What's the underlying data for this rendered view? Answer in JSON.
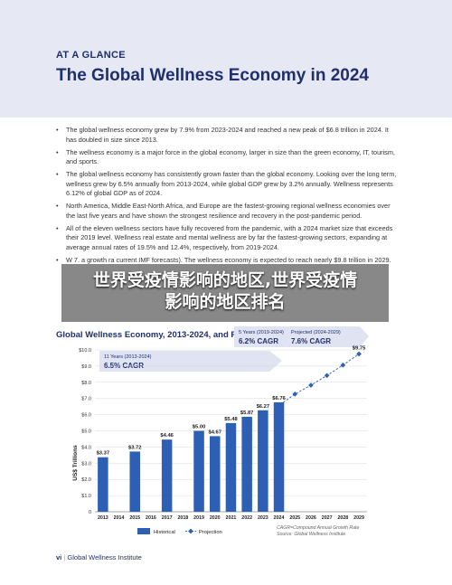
{
  "header": {
    "kicker": "AT A GLANCE",
    "title": "The Global Wellness Economy in 2024"
  },
  "bullets": [
    "The global wellness  economy grew by 7.9% from 2023-2024 and reached a new peak of $6.8 trillion in 2024. It has doubled in size since 2013.",
    "The wellness economy is a major force in the global economy, larger in size than the green economy, IT, tourism, and sports.",
    "The global wellness economy has consistently grown faster than the global economy. Looking over the long term, wellness grew by 6.5% annually from 2013-2024, while global GDP grew by 3.2% annually. Wellness represents 6.12% of global GDP as of 2024.",
    "North America, Middle East-North Africa, and Europe are the fastest-growing regional wellness economies over the last five years and have shown the strongest resilience and recovery in the post-pandemic period.",
    "All of the eleven wellness sectors have fully recovered from the pandemic, with a 2024 market size that exceeds their 2019 level. Wellness real estate and mental wellness are by far the fastest-growing sectors, expanding at average annual rates of 19.5% and 12.4%, respectively, from 2019-2024.",
    "W                                                                          7.                                            a growth ra                                                                                                 current IMF forecasts). The wellness economy is expected to reach nearly $9.8 trillion in 2029."
  ],
  "overlay": {
    "line1": "世界受疫情影响的地区,世界受疫情",
    "line2": "影响的地区排名"
  },
  "chart_title": "Global Wellness Economy, 2013-2024, and Projections, 2013-2029",
  "callouts": {
    "c11_period": "11 Years (2013-2024)",
    "c11_value": "6.5% CAGR",
    "c5_period": "5 Years (2019-2024)",
    "c5_value": "6.2% CAGR",
    "proj_period": "Projected (2024-2029)",
    "proj_value": "7.6% CAGR"
  },
  "legend": {
    "historical": "Historical",
    "projection": "Projection"
  },
  "footnote": {
    "line1": "CAGR=Compound Annual Growth Rate",
    "line2": "Source: Global Wellness Institute"
  },
  "footer": {
    "page": "vi",
    "separator": "|",
    "org": "Global Wellness Institute"
  },
  "colors": {
    "navy": "#1f2f6e",
    "bar": "#2d5fb4",
    "projection": "#2d5fb4",
    "callout": "#dfe3f2"
  },
  "chart_data": {
    "type": "bar",
    "ylabel": "US$ Trillions",
    "ylim": [
      0,
      10
    ],
    "yticks": [
      "0",
      "$1.0",
      "$2.0",
      "$3.0",
      "$4.0",
      "$5.0",
      "$6.0",
      "$7.0",
      "$8.0",
      "$9.0",
      "$10.0"
    ],
    "x": [
      "2013",
      "2014",
      "2015",
      "2016",
      "2017",
      "2018",
      "2019",
      "2020",
      "2021",
      "2022",
      "2023",
      "2024",
      "2025",
      "2026",
      "2027",
      "2028",
      "2029"
    ],
    "series": [
      {
        "name": "Historical",
        "kind": "bar",
        "points": [
          {
            "x": "2013",
            "y": 3.37,
            "label": "$3.37"
          },
          {
            "x": "2015",
            "y": 3.72,
            "label": "$3.72"
          },
          {
            "x": "2017",
            "y": 4.46,
            "label": "$4.46"
          },
          {
            "x": "2019",
            "y": 5.0,
            "label": "$5.00"
          },
          {
            "x": "2020",
            "y": 4.67,
            "label": "$4.67"
          },
          {
            "x": "2021",
            "y": 5.48,
            "label": "$5.48"
          },
          {
            "x": "2022",
            "y": 5.87,
            "label": "$5.87"
          },
          {
            "x": "2023",
            "y": 6.27,
            "label": "$6.27"
          },
          {
            "x": "2024",
            "y": 6.76,
            "label": "$6.76"
          }
        ]
      },
      {
        "name": "Projection",
        "kind": "line",
        "points": [
          {
            "x": "2024",
            "y": 6.76,
            "label": ""
          },
          {
            "x": "2025",
            "y": 7.27,
            "label": ""
          },
          {
            "x": "2026",
            "y": 7.82,
            "label": ""
          },
          {
            "x": "2027",
            "y": 8.42,
            "label": ""
          },
          {
            "x": "2028",
            "y": 9.06,
            "label": ""
          },
          {
            "x": "2029",
            "y": 9.75,
            "label": "$9.75"
          }
        ]
      }
    ]
  }
}
